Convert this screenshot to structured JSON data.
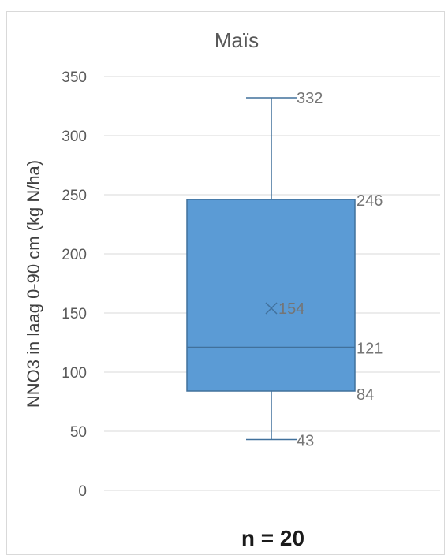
{
  "chart_data": {
    "type": "box",
    "title": "Maïs",
    "ylabel": "NNO3 in laag 0-90 cm (kg N/ha)",
    "xlabel": "n = 20",
    "ylim": [
      0,
      350
    ],
    "yticks": [
      0,
      50,
      100,
      150,
      200,
      250,
      300,
      350
    ],
    "grid": true,
    "box": {
      "min": 43,
      "q1": 84,
      "median": 121,
      "mean": 154,
      "q3": 246,
      "max": 332
    },
    "labels": {
      "min": "43",
      "q1": "84",
      "median": "121",
      "mean": "154",
      "q3": "246",
      "max": "332"
    },
    "colors": {
      "box_fill": "#5b9bd5",
      "box_stroke": "#41719c",
      "whisker": "#41719c",
      "grid": "#d9d9d9"
    }
  }
}
